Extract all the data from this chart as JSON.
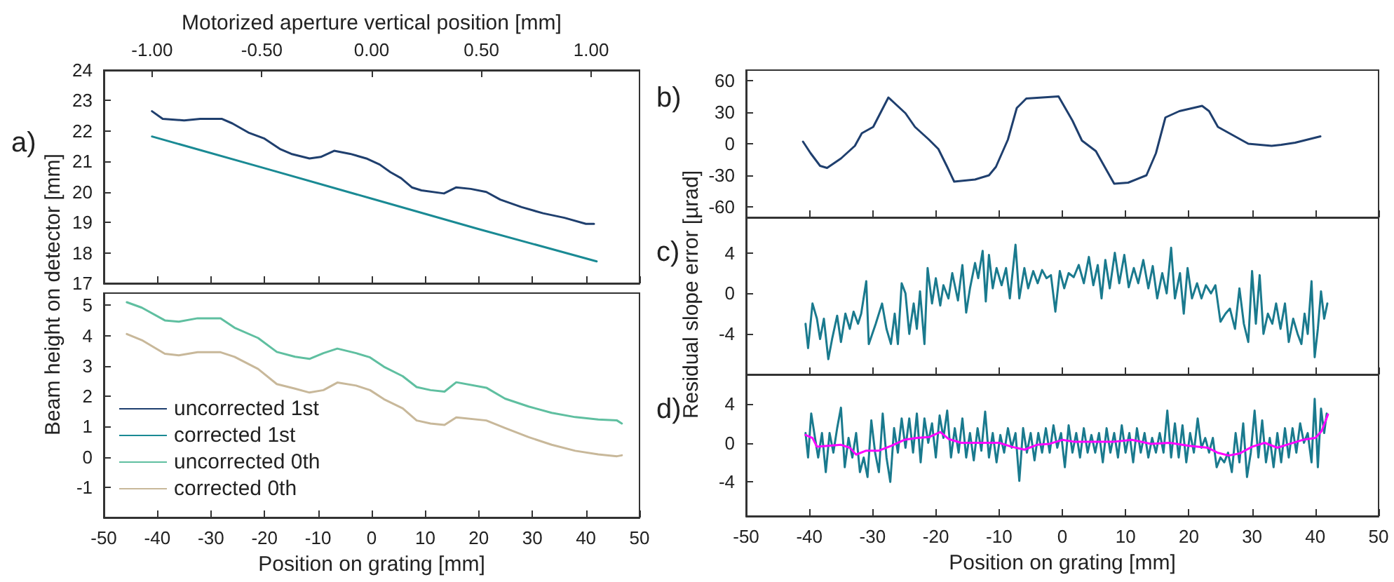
{
  "chart_data": [
    {
      "type": "line",
      "x2label": "Motorized aperture vertical position [mm]",
      "annotations": [
        "a)"
      ],
      "xlim": [
        -50,
        50
      ],
      "xticks": [
        -50,
        -40,
        -30,
        -20,
        -10,
        0,
        10,
        20,
        30,
        40,
        50
      ],
      "x2lim": [
        -1.22,
        1.22
      ],
      "x2ticks": [
        {
          "value": -1,
          "label": "-1.00"
        },
        {
          "value": -0.5,
          "label": "-0.50"
        },
        {
          "value": 0,
          "label": "0.00"
        },
        {
          "value": 0.5,
          "label": "0.50"
        },
        {
          "value": 1,
          "label": "1.00"
        }
      ],
      "ylim": [
        17,
        24
      ],
      "yticks": [
        17,
        18,
        19,
        20,
        21,
        22,
        23,
        24
      ],
      "tick_labels": "y",
      "legend": "bottom left",
      "grid": false,
      "marker": "none",
      "line_style": "solid",
      "series": [
        {
          "name": "uncorrected 1st",
          "color": "#1f3f6e",
          "x": [
            -41,
            -39,
            -35,
            -32,
            -28,
            -26,
            -23,
            -20,
            -17,
            -15,
            -11.6,
            -9.5,
            -7,
            -4,
            -1,
            1.5,
            3.5,
            5.5,
            7.5,
            9.3,
            13.5,
            15.8,
            18.5,
            21.4,
            24,
            28,
            32,
            36,
            40,
            41.5
          ],
          "values": [
            22.65,
            22.4,
            22.35,
            22.4,
            22.4,
            22.25,
            21.95,
            21.75,
            21.4,
            21.25,
            21.1,
            21.15,
            21.35,
            21.25,
            21.1,
            20.9,
            20.65,
            20.45,
            20.15,
            20.05,
            19.95,
            20.15,
            20.1,
            20.0,
            19.75,
            19.5,
            19.3,
            19.15,
            18.95,
            18.95
          ]
        },
        {
          "name": "corrected 1st",
          "color": "#1a8a94",
          "x": [
            -41,
            -20,
            0,
            20,
            42
          ],
          "values": [
            21.82,
            20.78,
            19.78,
            18.78,
            17.72
          ]
        }
      ]
    },
    {
      "type": "line",
      "xlabel": "Position on grating [mm]",
      "ylabel": "Beam height on detector [mm]",
      "xlim": [
        -50,
        50
      ],
      "xticks": [
        -50,
        -40,
        -30,
        -20,
        -10,
        0,
        10,
        20,
        30,
        40,
        50
      ],
      "ylim": [
        -2,
        5.4
      ],
      "yticks": [
        -1,
        0,
        1,
        2,
        3,
        4,
        5
      ],
      "legend": "bottom left",
      "grid": false,
      "marker": "none",
      "line_style": "solid",
      "x": [
        -45.7,
        -42.9,
        -38.6,
        -36,
        -32.5,
        -28.2,
        -25.6,
        -21.2,
        -17.7,
        -14.3,
        -11.6,
        -9,
        -6.4,
        -2.9,
        -0.3,
        2.3,
        5.8,
        8.4,
        11,
        13.6,
        15.8,
        21.4,
        24.9,
        29.3,
        33.6,
        38,
        42.3,
        45.8,
        46.7
      ],
      "series": [
        {
          "name": "uncorrected 0th",
          "color": "#5fbfa0",
          "values": [
            5.1,
            4.92,
            4.5,
            4.46,
            4.57,
            4.57,
            4.26,
            3.92,
            3.46,
            3.3,
            3.23,
            3.42,
            3.57,
            3.42,
            3.28,
            2.97,
            2.66,
            2.3,
            2.2,
            2.15,
            2.46,
            2.28,
            1.92,
            1.66,
            1.45,
            1.31,
            1.23,
            1.2,
            1.1
          ]
        },
        {
          "name": "corrected 0th",
          "color": "#c8b89a",
          "values": [
            4.05,
            3.85,
            3.4,
            3.35,
            3.45,
            3.45,
            3.3,
            2.9,
            2.4,
            2.25,
            2.12,
            2.2,
            2.45,
            2.35,
            2.2,
            1.9,
            1.6,
            1.2,
            1.1,
            1.05,
            1.3,
            1.2,
            0.95,
            0.65,
            0.4,
            0.2,
            0.08,
            0.02,
            0.05
          ]
        }
      ]
    },
    {
      "type": "line",
      "annotations": [
        "b)"
      ],
      "xlim": [
        -50,
        50
      ],
      "xticks": [
        -50,
        -40,
        -30,
        -20,
        -10,
        0,
        10,
        20,
        30,
        40,
        50
      ],
      "ylim": [
        -70,
        70
      ],
      "yticks": [
        -60,
        -30,
        0,
        30,
        60
      ],
      "tick_labels": "y",
      "grid": false,
      "marker": "none",
      "line_style": "solid",
      "series": [
        {
          "color": "#1f3f6e",
          "x": [
            -41,
            -39.8,
            -38.3,
            -37.2,
            -35,
            -32.8,
            -31.7,
            -29.9,
            -27.5,
            -24.8,
            -23.3,
            -21.1,
            -19.6,
            -18.2,
            -17.1,
            -13.8,
            -11.6,
            -10.5,
            -8.6,
            -7.2,
            -5.7,
            -0.6,
            1.6,
            3.1,
            5.3,
            6.7,
            8.2,
            10.4,
            13.3,
            14.8,
            16.3,
            18.5,
            22.1,
            23.2,
            24.6,
            27.3,
            29.4,
            33.1,
            34.6,
            36.8,
            40.8
          ],
          "values": [
            2,
            -9,
            -21,
            -23,
            -14,
            -2,
            10,
            16,
            44,
            29,
            16,
            4,
            -5,
            -22,
            -36,
            -34,
            -30,
            -22,
            4,
            34,
            43,
            45,
            22,
            3,
            -7,
            -22,
            -38,
            -37,
            -30,
            -9,
            25,
            31,
            36,
            31,
            16,
            7,
            0,
            -2,
            -1,
            1,
            7
          ]
        }
      ]
    },
    {
      "type": "line",
      "annotations": [
        "c)"
      ],
      "ylabel": "Residual slope error [µrad]",
      "xlim": [
        -50,
        50
      ],
      "xticks": [
        -50,
        -40,
        -30,
        -20,
        -10,
        0,
        10,
        20,
        30,
        40,
        50
      ],
      "ylim": [
        -8,
        7.5
      ],
      "yticks": [
        -4,
        0,
        4
      ],
      "tick_labels": "y",
      "grid": false,
      "marker": "none",
      "line_style": "solid",
      "series": [
        {
          "color": "#1a7a8e",
          "x": [
            -40.6,
            -40.2,
            -39.5,
            -38.8,
            -38.3,
            -37.7,
            -37,
            -36.4,
            -35.6,
            -35,
            -34.3,
            -33.6,
            -33,
            -32.3,
            -31.8,
            -31,
            -30.6,
            -29.5,
            -28.5,
            -27.8,
            -27.1,
            -26.5,
            -26,
            -25.4,
            -24.8,
            -24.2,
            -23.5,
            -23,
            -22.5,
            -21.8,
            -21.3,
            -20.6,
            -20,
            -19.3,
            -18.8,
            -18,
            -17.4,
            -16.5,
            -15.8,
            -15.2,
            -14.6,
            -13.8,
            -13.3,
            -12.6,
            -12.1,
            -11.6,
            -11,
            -10.4,
            -9.6,
            -8.9,
            -8.3,
            -7.4,
            -6.8,
            -6,
            -5.4,
            -4.6,
            -3.9,
            -3.2,
            -2.5,
            -1.8,
            -1.1,
            -0.4,
            0.3,
            1,
            1.8,
            2.6,
            3.4,
            4.2,
            4.9,
            5.6,
            6.2,
            6.8,
            7.5,
            8.3,
            9,
            9.8,
            10.5,
            11.3,
            12,
            12.8,
            13.6,
            14.3,
            15,
            15.8,
            16.5,
            17.2,
            17.8,
            18.6,
            19.2,
            19.8,
            20.5,
            21.3,
            22,
            22.7,
            23.5,
            24.2,
            25,
            25.8,
            26.5,
            27.3,
            28,
            28.7,
            29.4,
            30,
            30.6,
            31.2,
            31.8,
            32.5,
            33.2,
            33.8,
            34.5,
            35.2,
            35.8,
            36.5,
            37.2,
            37.8,
            38.3,
            38.8,
            39.4,
            39.9,
            40.4,
            40.9,
            41.4,
            41.9
          ],
          "values": [
            -3.0,
            -5.4,
            -1.0,
            -2.5,
            -4.5,
            -2.5,
            -6.5,
            -4.5,
            -2.2,
            -4.8,
            -2.0,
            -3.5,
            -1.8,
            -3.0,
            -2.0,
            1.2,
            -5.0,
            -3.0,
            -1.0,
            -3.5,
            -5.0,
            -2.0,
            -5.0,
            1.0,
            0.0,
            -4.0,
            -1.0,
            -3.5,
            0.2,
            -5.0,
            2.5,
            -1.0,
            1.5,
            -1.2,
            0.8,
            -0.5,
            2.0,
            -0.7,
            2.8,
            -1.9,
            0.5,
            3.0,
            1.5,
            4.2,
            -0.8,
            3.8,
            0.5,
            2.5,
            0.8,
            2.5,
            -0.5,
            4.8,
            -0.5,
            2.5,
            0.5,
            2.2,
            1.0,
            2.3,
            1.5,
            1.8,
            -1.8,
            2.2,
            0.5,
            2.0,
            1.6,
            2.8,
            1.0,
            3.6,
            0.8,
            2.8,
            -0.5,
            3.3,
            0.5,
            4.0,
            1.0,
            3.8,
            0.6,
            2.5,
            1.0,
            3.3,
            0.5,
            2.7,
            -0.5,
            2.0,
            0.0,
            4.5,
            -0.5,
            2.0,
            -2.0,
            2.5,
            -0.5,
            1.0,
            -0.5,
            0.8,
            0.0,
            0.8,
            -2.8,
            -2.0,
            -1.5,
            -3.5,
            0.5,
            -3.0,
            -4.8,
            2.2,
            -3.0,
            1.8,
            -4.0,
            -2.0,
            -3.0,
            -1.0,
            -3.5,
            -1.0,
            -4.8,
            -2.5,
            -4.0,
            -5.0,
            -2.0,
            -4.0,
            1.2,
            -6.3,
            -3.5,
            0.2,
            -2.5,
            -1.0
          ]
        }
      ]
    },
    {
      "type": "line",
      "xlabel": "Position on grating [mm]",
      "annotations": [
        "d)"
      ],
      "xlim": [
        -50,
        50
      ],
      "xticks": [
        -50,
        -40,
        -30,
        -20,
        -10,
        0,
        10,
        20,
        30,
        40,
        50
      ],
      "ylim": [
        -7.5,
        7
      ],
      "yticks": [
        -4,
        0,
        4
      ],
      "grid": false,
      "marker": "none",
      "line_style": "solid",
      "series": [
        {
          "color": "#1a7a8e",
          "x": [
            -40.6,
            -40.2,
            -39.7,
            -39.1,
            -38.6,
            -38,
            -37.4,
            -36.8,
            -36.2,
            -35.6,
            -35,
            -34.4,
            -33.8,
            -33.2,
            -32.6,
            -32,
            -31.4,
            -30.8,
            -30.2,
            -29.6,
            -29,
            -28.4,
            -27.8,
            -27.2,
            -26.6,
            -26,
            -25.4,
            -24.8,
            -24.2,
            -23.6,
            -23,
            -22.4,
            -21.8,
            -21.2,
            -20.6,
            -20,
            -19.4,
            -18.8,
            -18.2,
            -17.6,
            -17,
            -16.4,
            -15.8,
            -15.2,
            -14.6,
            -14,
            -13.4,
            -12.8,
            -12.2,
            -11.6,
            -11,
            -10.4,
            -9.8,
            -9.2,
            -8.6,
            -8,
            -7.4,
            -6.8,
            -6.2,
            -5.6,
            -5,
            -4.4,
            -3.8,
            -3.2,
            -2.6,
            -2,
            -1.4,
            -0.8,
            -0.2,
            0.4,
            1,
            1.6,
            2.2,
            2.8,
            3.4,
            4,
            4.6,
            5.2,
            5.8,
            6.4,
            7,
            7.6,
            8.2,
            8.8,
            9.4,
            10,
            10.6,
            11.2,
            11.8,
            12.4,
            13,
            13.6,
            14.2,
            14.8,
            15.4,
            16,
            16.6,
            17.2,
            17.8,
            18.4,
            19,
            19.6,
            20.2,
            20.8,
            21.4,
            22,
            22.6,
            23.2,
            23.8,
            24.4,
            25,
            25.6,
            26.2,
            26.8,
            27.4,
            28,
            28.6,
            29.2,
            29.8,
            30.4,
            31,
            31.6,
            32.2,
            32.8,
            33.4,
            34,
            34.6,
            35.2,
            35.8,
            36.4,
            37,
            37.6,
            38.2,
            38.8,
            39.4,
            39.9,
            40.4,
            40.9,
            41.4,
            41.8
          ],
          "values": [
            1.0,
            -1.5,
            3.0,
            0.5,
            -1.5,
            1.0,
            -3.0,
            1.0,
            -1.0,
            1.5,
            3.6,
            -2.5,
            0.5,
            -1.5,
            1.0,
            -3.0,
            -1.5,
            -3.5,
            2.3,
            -1.0,
            -3.0,
            3.0,
            -1.5,
            -4.0,
            1.5,
            -1.0,
            2.5,
            -0.5,
            2.5,
            -1.0,
            3.0,
            -2.0,
            2.5,
            0.0,
            2.0,
            -1.5,
            2.8,
            0.5,
            3.3,
            -1.5,
            1.5,
            -1.0,
            2.5,
            -1.5,
            1.0,
            -1.8,
            1.5,
            -0.8,
            3.2,
            -1.5,
            1.0,
            -2.0,
            0.8,
            -1.0,
            1.5,
            -0.5,
            1.0,
            -3.9,
            1.5,
            -1.0,
            1.0,
            -1.8,
            1.0,
            -1.0,
            1.5,
            -1.0,
            1.8,
            -0.5,
            1.0,
            -2.5,
            1.8,
            -1.0,
            1.0,
            -1.5,
            1.5,
            -1.0,
            0.8,
            -1.0,
            1.0,
            -2.0,
            1.5,
            -1.0,
            1.0,
            -1.5,
            1.8,
            -1.0,
            1.0,
            -2.0,
            1.5,
            -1.0,
            1.0,
            -1.5,
            0.5,
            -1.0,
            1.0,
            -1.0,
            3.3,
            -1.5,
            2.0,
            -1.5,
            1.8,
            -2.0,
            1.0,
            -1.0,
            2.5,
            -0.5,
            0.5,
            -1.0,
            0.5,
            -2.5,
            -1.5,
            -2.0,
            -1.0,
            -3.0,
            1.0,
            -2.0,
            2.0,
            -3.5,
            -1.0,
            3.3,
            -1.5,
            2.3,
            -2.0,
            0.5,
            -2.5,
            1.0,
            -2.0,
            1.5,
            -1.5,
            1.5,
            -1.0,
            2.0,
            0.0,
            1.0,
            -2.0,
            4.5,
            -2.5,
            3.5,
            1.0,
            3.0
          ]
        },
        {
          "color": "#ff00ff",
          "x": [
            -40.6,
            -39.5,
            -38.8,
            -37,
            -35,
            -33.6,
            -32.6,
            -31,
            -29,
            -27,
            -25,
            -23,
            -21,
            -19.3,
            -18,
            -16,
            -13,
            -10,
            -8,
            -6,
            -4,
            -2,
            0,
            2,
            5,
            8,
            11,
            14,
            17,
            20,
            23,
            24.5,
            26.3,
            28,
            30,
            32,
            34,
            36,
            38,
            40,
            41,
            42
          ],
          "values": [
            0.8,
            0.5,
            -0.4,
            -0.3,
            -0.2,
            -0.5,
            -1.2,
            -0.8,
            -0.8,
            -0.3,
            0.3,
            0.5,
            0.6,
            1.1,
            0.4,
            0.0,
            0.0,
            0.0,
            -0.4,
            -0.7,
            -0.2,
            -0.1,
            0.3,
            0.1,
            0.1,
            0.1,
            0.3,
            -0.1,
            0.0,
            -0.3,
            -0.5,
            -1.0,
            -1.3,
            -1.1,
            -0.4,
            0.0,
            -0.5,
            -0.1,
            0.3,
            0.5,
            1.2,
            2.9
          ]
        }
      ]
    }
  ]
}
